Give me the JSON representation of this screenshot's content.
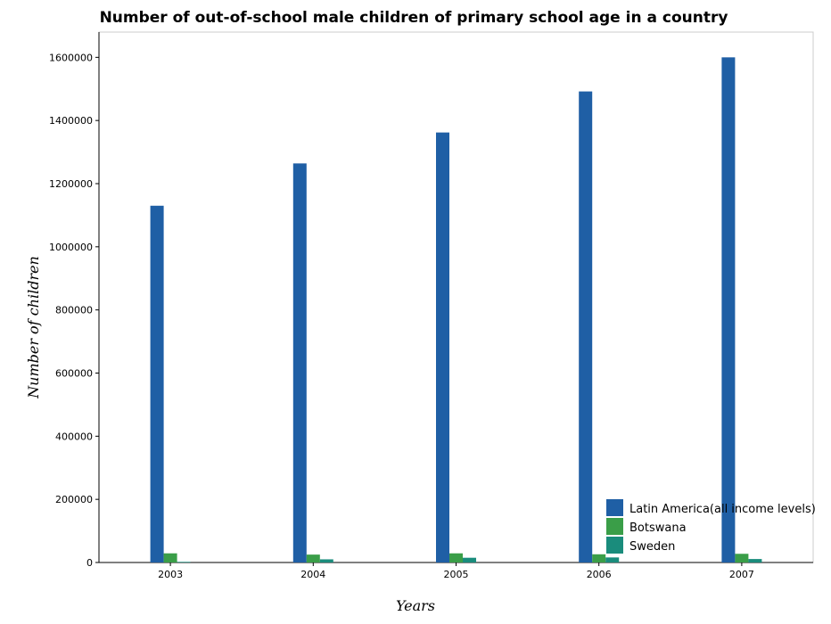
{
  "chart_data": {
    "type": "bar",
    "title": "Number of out-of-school male children of primary school age in a country",
    "xlabel": "Years",
    "ylabel": "Number of children",
    "categories": [
      "2003",
      "2004",
      "2005",
      "2006",
      "2007"
    ],
    "ylim": [
      0,
      1680000
    ],
    "yticks": [
      0,
      200000,
      400000,
      600000,
      800000,
      1000000,
      1200000,
      1400000,
      1600000
    ],
    "ytick_labels": [
      "0",
      "200000",
      "400000",
      "600000",
      "800000",
      "1000000",
      "1200000",
      "1400000",
      "1600000"
    ],
    "series": [
      {
        "name": "Latin America(all income levels)",
        "color": "#1f5fa5",
        "values": [
          1130000,
          1264000,
          1362000,
          1492000,
          1600000
        ]
      },
      {
        "name": "Botswana",
        "color": "#3a9e48",
        "values": [
          29000,
          25000,
          29000,
          26000,
          27500
        ]
      },
      {
        "name": "Sweden",
        "color": "#1a8c7c",
        "values": [
          2000,
          10000,
          15000,
          16000,
          11000
        ]
      }
    ],
    "legend_position": "bottom-right",
    "grid": false
  }
}
